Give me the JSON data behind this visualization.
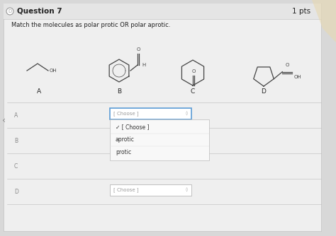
{
  "title": "Question 7",
  "pts": "1 pts",
  "instruction": "Match the molecules as polar protic OR polar aprotic.",
  "row_labels": [
    "A",
    "B",
    "C",
    "D"
  ],
  "dropdown_placeholder": "[ Choose ]",
  "dropdown_open_items": [
    "✓ [ Choose ]",
    "aprotic",
    "protic"
  ],
  "bg_color": "#d8d8d8",
  "card_color": "#efefef",
  "dropdown_color": "#ffffff",
  "border_color": "#bbbbbb",
  "blue_border": "#5b9bd5",
  "text_color": "#222222",
  "gray_text": "#777777",
  "mol_color": "#444444",
  "title_fontsize": 7.5,
  "body_fontsize": 6.0,
  "small_fontsize": 5.5,
  "mol_lw": 0.9
}
